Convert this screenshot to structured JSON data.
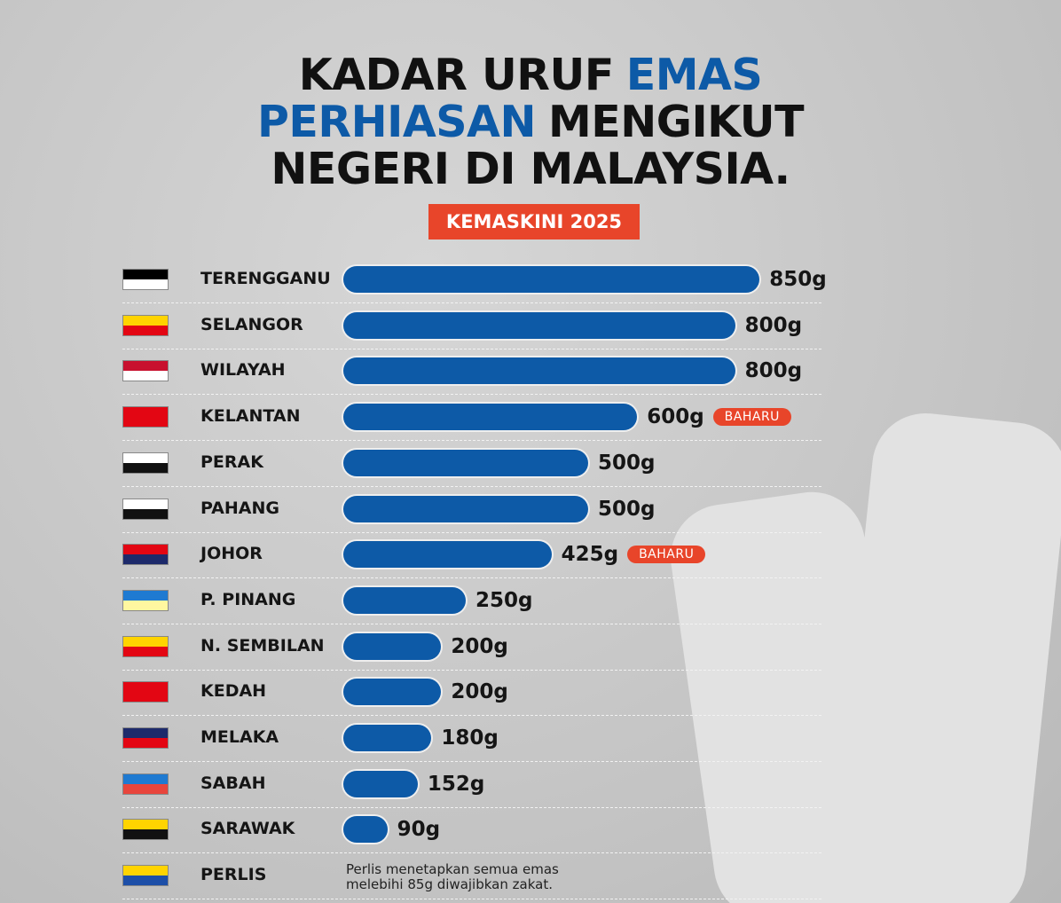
{
  "chart_data": {
    "type": "bar",
    "orientation": "horizontal",
    "title_lines": [
      [
        {
          "text": "KADAR URUF",
          "color": "#111111"
        },
        {
          "text": "EMAS",
          "color": "#0d5aa7"
        }
      ],
      [
        {
          "text": "PERHIASAN",
          "color": "#0d5aa7"
        },
        {
          "text": "MENGIKUT",
          "color": "#111111"
        }
      ],
      [
        {
          "text": "NEGERI DI MALAYSIA.",
          "color": "#111111"
        }
      ]
    ],
    "subtitle": "KEMASKINI 2025",
    "categories": [
      "TERENGGANU",
      "SELANGOR",
      "WILAYAH",
      "KELANTAN",
      "PERAK",
      "PAHANG",
      "JOHOR",
      "P. PINANG",
      "N. SEMBILAN",
      "KEDAH",
      "MELAKA",
      "SABAH",
      "SARAWAK",
      "PERLIS"
    ],
    "values": [
      850,
      800,
      800,
      600,
      500,
      500,
      425,
      250,
      200,
      200,
      180,
      152,
      90,
      null
    ],
    "value_labels": [
      "850g",
      "800g",
      "800g",
      "600g",
      "500g",
      "500g",
      "425g",
      "250g",
      "200g",
      "200g",
      "180g",
      "152g",
      "90g",
      null
    ],
    "badges": [
      null,
      null,
      null,
      "BAHARU",
      null,
      null,
      "BAHARU",
      null,
      null,
      null,
      null,
      null,
      null,
      null
    ],
    "notes": [
      null,
      null,
      null,
      null,
      null,
      null,
      null,
      null,
      null,
      null,
      null,
      null,
      null,
      "Perlis menetapkan semua emas melebihi 85g diwajibkan zakat."
    ],
    "color": "#0d5aa7",
    "badge_color": "#e8452a"
  }
}
